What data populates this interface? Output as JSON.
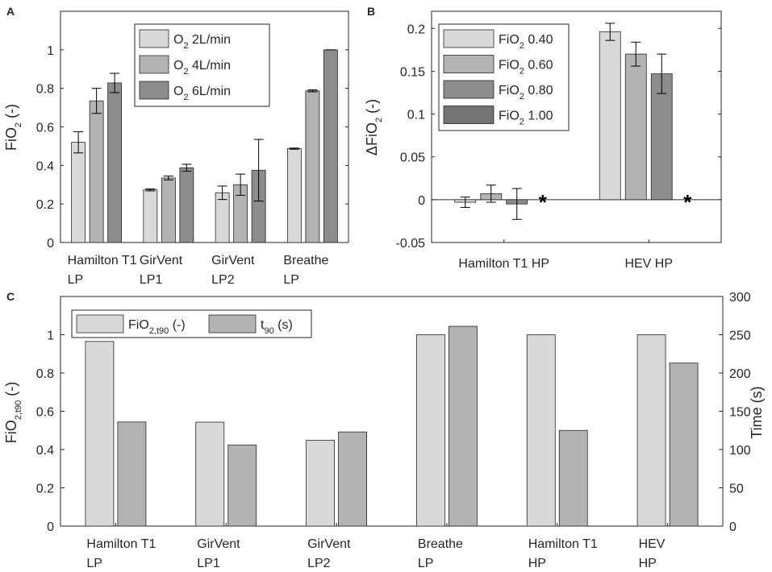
{
  "chart_data": [
    {
      "panel": "A",
      "type": "bar",
      "ylabel": "FiO",
      "ylabel_sub": "2",
      "ylabel_suffix": " (-)",
      "ylim": [
        0,
        1.2
      ],
      "yticks": [
        "0",
        "0.2",
        "0.4",
        "0.6",
        "0.8",
        "1"
      ],
      "yticks_values": [
        0,
        0.2,
        0.4,
        0.6,
        0.8,
        1
      ],
      "categories": [
        {
          "line1": "Hamilton T1",
          "line2": "LP"
        },
        {
          "line1": "GirVent",
          "line2": "LP1"
        },
        {
          "line1": "GirVent",
          "line2": "LP2"
        },
        {
          "line1": "Breathe",
          "line2": "LP"
        }
      ],
      "legend_position": "top-right",
      "series": [
        {
          "name": "O",
          "sub": "2",
          "suffix": " 2L/min",
          "color": "#d9d9d9",
          "values": [
            0.52,
            0.273,
            0.258,
            0.487
          ],
          "errors": [
            0.055,
            0.005,
            0.035,
            0.003
          ]
        },
        {
          "name": "O",
          "sub": "2",
          "suffix": " 4L/min",
          "color": "#b3b3b3",
          "values": [
            0.735,
            0.335,
            0.3,
            0.787
          ],
          "errors": [
            0.065,
            0.01,
            0.055,
            0.005
          ]
        },
        {
          "name": "O",
          "sub": "2",
          "suffix": " 6L/min",
          "color": "#8c8c8c",
          "values": [
            0.828,
            0.388,
            0.375,
            1.0
          ],
          "errors": [
            0.05,
            0.018,
            0.16,
            0.0
          ]
        }
      ]
    },
    {
      "panel": "B",
      "type": "bar",
      "ylabel": "ΔFiO",
      "ylabel_sub": "2",
      "ylabel_suffix": " (-)",
      "ylim": [
        -0.05,
        0.22
      ],
      "yticks": [
        "-0.05",
        "0",
        "0.05",
        "0.1",
        "0.15",
        "0.2"
      ],
      "yticks_values": [
        -0.05,
        0,
        0.05,
        0.1,
        0.15,
        0.2
      ],
      "categories": [
        {
          "line1": "Hamilton T1 HP",
          "line2": ""
        },
        {
          "line1": "HEV HP",
          "line2": ""
        }
      ],
      "legend_position": "top-left",
      "missing_marker": "*",
      "series": [
        {
          "name": "FiO",
          "sub": "2",
          "suffix": " 0.40",
          "color": "#d9d9d9",
          "values": [
            -0.003,
            0.196
          ],
          "errors": [
            0.006,
            0.01
          ]
        },
        {
          "name": "FiO",
          "sub": "2",
          "suffix": " 0.60",
          "color": "#b3b3b3",
          "values": [
            0.007,
            0.17
          ],
          "errors": [
            0.01,
            0.014
          ]
        },
        {
          "name": "FiO",
          "sub": "2",
          "suffix": " 0.80",
          "color": "#8c8c8c",
          "values": [
            -0.005,
            0.147
          ],
          "errors": [
            0.018,
            0.023
          ]
        },
        {
          "name": "FiO",
          "sub": "2",
          "suffix": " 1.00",
          "color": "#737373",
          "values": [
            null,
            null
          ],
          "errors": [
            null,
            null
          ]
        }
      ]
    },
    {
      "panel": "C",
      "type": "bar",
      "ylabel": "FiO",
      "ylabel_sub": "2,t90",
      "ylabel_suffix": " (-)",
      "ylim": [
        0,
        1.2
      ],
      "yticks": [
        "0",
        "0.2",
        "0.4",
        "0.6",
        "0.8",
        "1"
      ],
      "yticks_values": [
        0,
        0.2,
        0.4,
        0.6,
        0.8,
        1
      ],
      "y2label": "Time (s)",
      "y2lim": [
        0,
        300
      ],
      "y2ticks": [
        "0",
        "50",
        "100",
        "150",
        "200",
        "250",
        "300"
      ],
      "y2ticks_values": [
        0,
        50,
        100,
        150,
        200,
        250,
        300
      ],
      "categories": [
        {
          "line1": "Hamilton T1",
          "line2": "LP"
        },
        {
          "line1": "GirVent",
          "line2": "LP1"
        },
        {
          "line1": "GirVent",
          "line2": "LP2"
        },
        {
          "line1": "Breathe",
          "line2": "LP"
        },
        {
          "line1": "Hamilton T1",
          "line2": "HP"
        },
        {
          "line1": "HEV",
          "line2": "HP"
        }
      ],
      "legend_position": "top-left",
      "series": [
        {
          "name": "FiO",
          "sub": "2,t90",
          "suffix": " (-)",
          "color": "#d9d9d9",
          "axis": "left",
          "values": [
            0.965,
            0.543,
            0.448,
            1.0,
            1.0,
            1.0
          ]
        },
        {
          "name": "t",
          "sub": "90",
          "suffix": " (s)",
          "color": "#b3b3b3",
          "axis": "right",
          "values": [
            136,
            106,
            123,
            261,
            125,
            213
          ]
        }
      ]
    }
  ]
}
